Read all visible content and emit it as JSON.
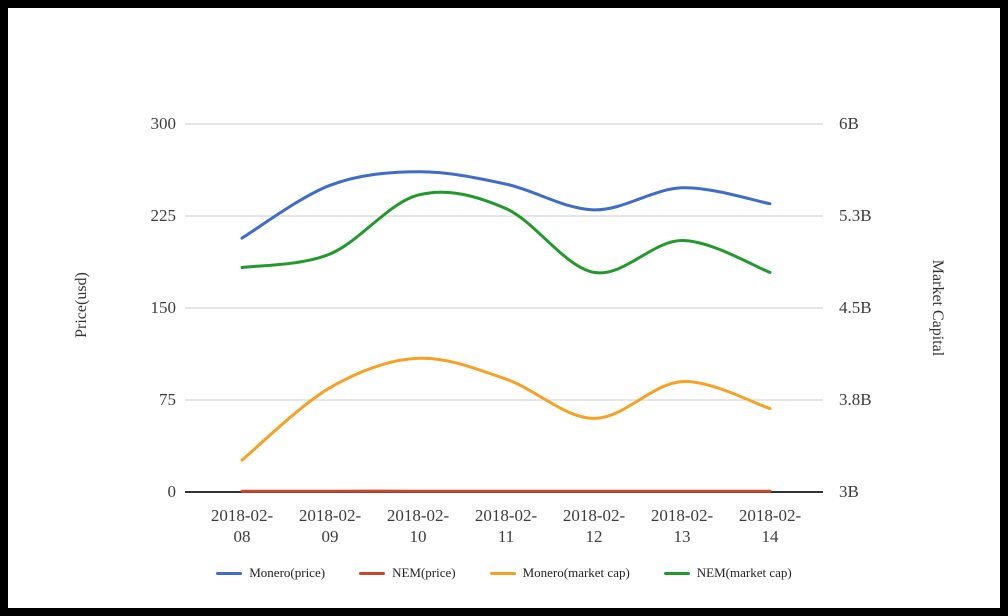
{
  "chart_data": {
    "type": "line",
    "smooth": true,
    "grid": true,
    "legend_position": "bottom",
    "x": [
      "2018-02-08",
      "2018-02-09",
      "2018-02-10",
      "2018-02-11",
      "2018-02-12",
      "2018-02-13",
      "2018-02-14"
    ],
    "left_axis": {
      "title": "Price(usd)",
      "range": [
        0,
        300
      ],
      "ticks": [
        0,
        75,
        150,
        225,
        300
      ],
      "tick_labels": [
        "0",
        "75",
        "150",
        "225",
        "300"
      ]
    },
    "right_axis": {
      "title": "Market Capital",
      "range": [
        3,
        6
      ],
      "ticks": [
        3,
        3.75,
        4.5,
        5.25,
        6
      ],
      "tick_labels": [
        "3B",
        "3.8B",
        "4.5B",
        "5.3B",
        "6B"
      ]
    },
    "series": [
      {
        "name": "Monero(price)",
        "axis": "left",
        "color": "#3f6cc8",
        "values": [
          207,
          250,
          261,
          251,
          230,
          248,
          235
        ]
      },
      {
        "name": "NEM(price)",
        "axis": "left",
        "color": "#c9462a",
        "values": [
          0.62,
          0.66,
          0.69,
          0.63,
          0.56,
          0.6,
          0.56
        ]
      },
      {
        "name": "Monero(market cap)",
        "axis": "right",
        "color": "#f6a024",
        "values": [
          3.26,
          3.85,
          4.09,
          3.92,
          3.6,
          3.9,
          3.68
        ]
      },
      {
        "name": "NEM(market cap)",
        "axis": "right",
        "color": "#219a2b",
        "values": [
          4.83,
          4.94,
          5.42,
          5.31,
          4.79,
          5.05,
          4.79
        ]
      }
    ]
  },
  "colors": {
    "background": "#ffffff",
    "frame": "#000000",
    "gridline": "#cccccc",
    "axis_line": "#333333",
    "text": "#3c3c3c"
  }
}
